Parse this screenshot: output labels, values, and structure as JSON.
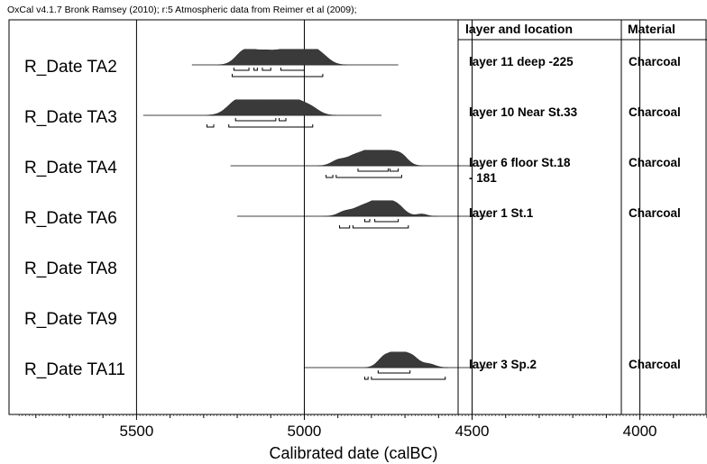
{
  "chart_data": {
    "type": "range",
    "header": "OxCal v4.1.7 Bronk Ramsey (2010); r:5 Atmospheric data from Reimer et al (2009);",
    "xlabel": "Calibrated date (calBC)",
    "xlim": [
      5880,
      3800
    ],
    "xticks": [
      5500,
      5000,
      4500,
      4000
    ],
    "columns": {
      "layer": "layer and location",
      "material": "Material"
    },
    "samples": [
      {
        "name": "R_Date TA2",
        "layer": [
          "layer 11  deep -225"
        ],
        "material": "Charcoal",
        "range_line": [
          5335,
          4720
        ],
        "peaks": [
          {
            "c": 5180,
            "w": 25,
            "h": 0.85
          },
          {
            "c": 5130,
            "w": 30,
            "h": 0.75
          },
          {
            "c": 5080,
            "w": 30,
            "h": 0.6
          },
          {
            "c": 5030,
            "w": 30,
            "h": 0.95
          },
          {
            "c": 4990,
            "w": 25,
            "h": 0.9
          },
          {
            "c": 4950,
            "w": 25,
            "h": 0.6
          }
        ],
        "ranges_68": [
          [
            5210,
            5165
          ],
          [
            5150,
            5140
          ],
          [
            5125,
            5100
          ],
          [
            5070,
            5000
          ]
        ],
        "ranges_95": [
          [
            5215,
            4945
          ]
        ]
      },
      {
        "name": "R_Date TA3",
        "layer": [
          "layer 10  Near St.33"
        ],
        "material": "Charcoal",
        "range_line": [
          5480,
          4770
        ],
        "peaks": [
          {
            "c": 5200,
            "w": 30,
            "h": 0.9
          },
          {
            "c": 5140,
            "w": 35,
            "h": 0.95
          },
          {
            "c": 5080,
            "w": 30,
            "h": 0.95
          },
          {
            "c": 5030,
            "w": 30,
            "h": 0.9
          },
          {
            "c": 4980,
            "w": 25,
            "h": 0.45
          }
        ],
        "ranges_68": [
          [
            5205,
            5085
          ],
          [
            5075,
            5055
          ]
        ],
        "ranges_95": [
          [
            5290,
            5270
          ],
          [
            5225,
            4975
          ]
        ]
      },
      {
        "name": "R_Date TA4",
        "layer": [
          "layer 6  floor St.18",
          "- 181"
        ],
        "material": "Charcoal",
        "range_line": [
          5220,
          4470
        ],
        "peaks": [
          {
            "c": 4900,
            "w": 20,
            "h": 0.35
          },
          {
            "c": 4850,
            "w": 25,
            "h": 0.65
          },
          {
            "c": 4800,
            "w": 25,
            "h": 1.0
          },
          {
            "c": 4750,
            "w": 25,
            "h": 0.85
          },
          {
            "c": 4710,
            "w": 20,
            "h": 0.6
          }
        ],
        "ranges_68": [
          [
            4840,
            4750
          ],
          [
            4745,
            4720
          ]
        ],
        "ranges_95": [
          [
            4935,
            4915
          ],
          [
            4905,
            4710
          ]
        ]
      },
      {
        "name": "R_Date TA6",
        "layer": [
          "layer 1     St.1"
        ],
        "material": "Charcoal",
        "range_line": [
          5200,
          4450
        ],
        "peaks": [
          {
            "c": 4880,
            "w": 20,
            "h": 0.3
          },
          {
            "c": 4830,
            "w": 25,
            "h": 0.6
          },
          {
            "c": 4780,
            "w": 25,
            "h": 1.0
          },
          {
            "c": 4730,
            "w": 25,
            "h": 0.85
          },
          {
            "c": 4650,
            "w": 15,
            "h": 0.15
          }
        ],
        "ranges_68": [
          [
            4820,
            4805
          ],
          [
            4790,
            4720
          ]
        ],
        "ranges_95": [
          [
            4895,
            4865
          ],
          [
            4855,
            4690
          ]
        ]
      },
      {
        "name": "R_Date TA8",
        "layer": [],
        "material": "",
        "range_line": null,
        "peaks": [],
        "ranges_68": [],
        "ranges_95": []
      },
      {
        "name": "R_Date TA9",
        "layer": [],
        "material": "",
        "range_line": null,
        "peaks": [],
        "ranges_68": [],
        "ranges_95": []
      },
      {
        "name": "R_Date TA11",
        "layer": [
          "layer 3  Sp.2"
        ],
        "material": "Charcoal",
        "range_line": [
          5000,
          4450
        ],
        "peaks": [
          {
            "c": 4760,
            "w": 20,
            "h": 0.75
          },
          {
            "c": 4720,
            "w": 20,
            "h": 1.0
          },
          {
            "c": 4680,
            "w": 20,
            "h": 0.75
          },
          {
            "c": 4630,
            "w": 20,
            "h": 0.25
          }
        ],
        "ranges_68": [
          [
            4780,
            4685
          ]
        ],
        "ranges_95": [
          [
            4820,
            4810
          ],
          [
            4800,
            4580
          ]
        ]
      }
    ],
    "colors": {
      "distribution": "#3a3a3a",
      "line": "#000000"
    }
  }
}
